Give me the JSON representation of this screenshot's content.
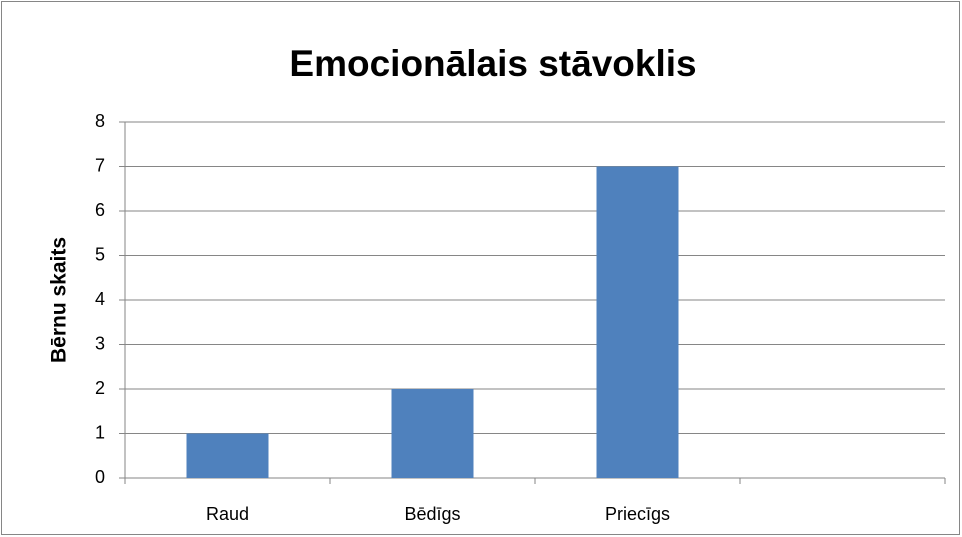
{
  "chart_data": {
    "type": "bar",
    "title": "Emocionālais stāvoklis",
    "ylabel": "Bērnu skaits",
    "categories": [
      "Raud",
      "Bēdīgs",
      "Priecīgs",
      null
    ],
    "values": [
      1,
      2,
      7,
      null
    ],
    "color": "#4f81bd",
    "ylim": [
      0,
      8
    ],
    "yticks": [
      0,
      1,
      2,
      3,
      4,
      5,
      6,
      7,
      8
    ],
    "grid": true
  }
}
